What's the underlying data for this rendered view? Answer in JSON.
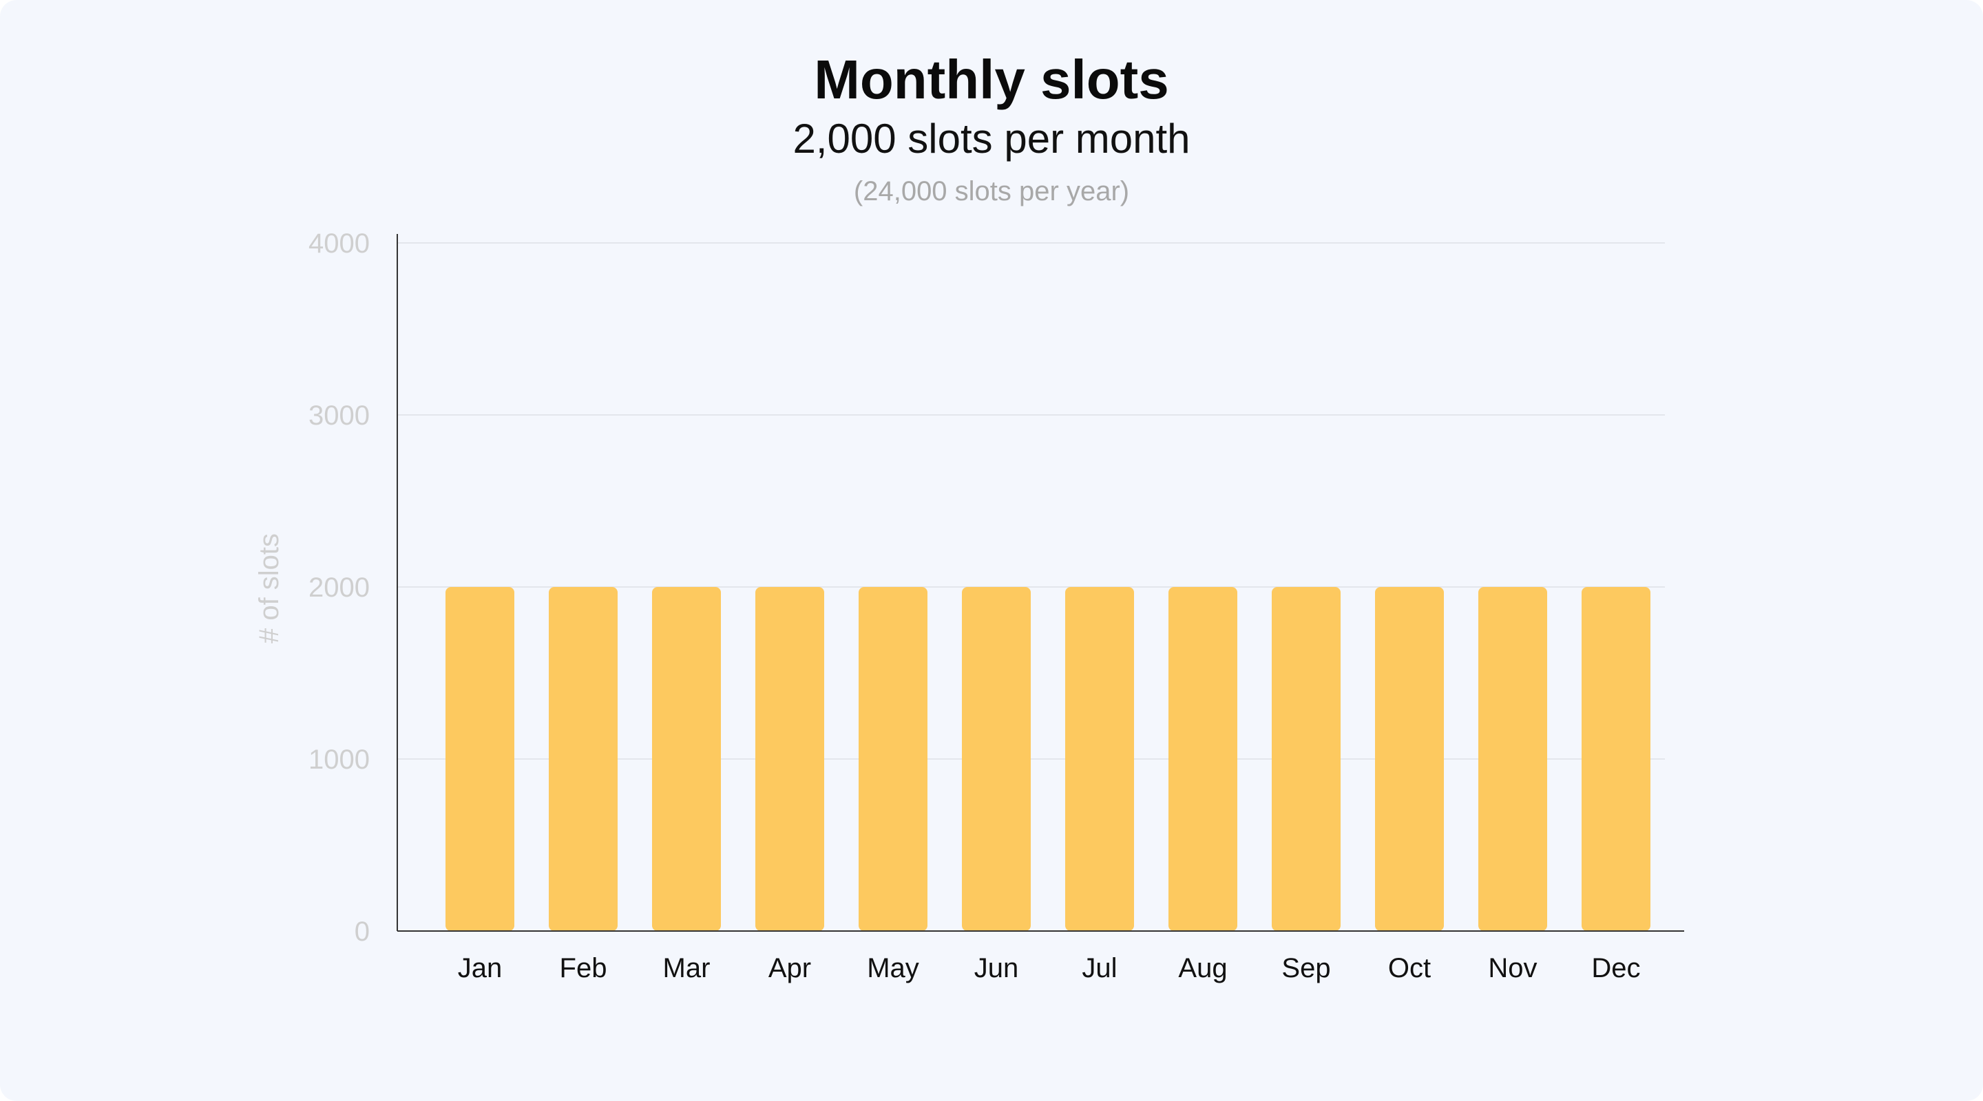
{
  "colors": {
    "background": "#f4f7fd",
    "bar": "#fdc95f",
    "grid": "#e3e6ec",
    "axis": "#333333",
    "tick_text": "#cfcfcf",
    "category_text": "#111111"
  },
  "chart_data": {
    "type": "bar",
    "title": "Monthly slots",
    "subtitle": "2,000 slots per month",
    "note": "(24,000 slots per year)",
    "xlabel": "",
    "ylabel": "# of slots",
    "ylim": [
      0,
      4000
    ],
    "yticks": [
      0,
      1000,
      2000,
      3000,
      4000
    ],
    "grid": true,
    "categories": [
      "Jan",
      "Feb",
      "Mar",
      "Apr",
      "May",
      "Jun",
      "Jul",
      "Aug",
      "Sep",
      "Oct",
      "Nov",
      "Dec"
    ],
    "values": [
      2000,
      2000,
      2000,
      2000,
      2000,
      2000,
      2000,
      2000,
      2000,
      2000,
      2000,
      2000
    ]
  }
}
